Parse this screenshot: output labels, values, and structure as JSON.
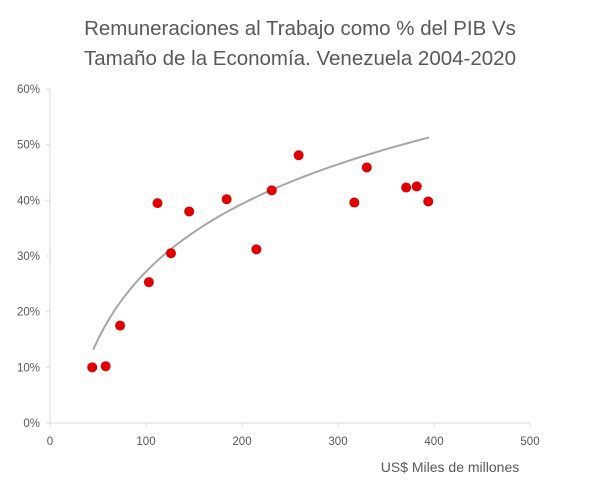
{
  "chart_data": {
    "type": "scatter",
    "title": "Remuneraciones  al Trabajo como % del PIB Vs Tamaño de la Economía. Venezuela 2004-2020",
    "title_lines": [
      "Remuneraciones  al Trabajo como % del PIB Vs",
      "Tamaño de la Economía. Venezuela 2004-2020"
    ],
    "xlabel": "US$ Miles de millones",
    "ylabel": "",
    "xlim": [
      0,
      500
    ],
    "ylim": [
      0,
      0.6
    ],
    "x_ticks": [
      0,
      100,
      200,
      300,
      400,
      500
    ],
    "y_ticks": [
      0,
      0.1,
      0.2,
      0.3,
      0.4,
      0.5,
      0.6
    ],
    "x_tick_labels": [
      "0",
      "100",
      "200",
      "300",
      "400",
      "500"
    ],
    "y_tick_labels": [
      "0%",
      "10%",
      "20%",
      "30%",
      "40%",
      "50%",
      "60%"
    ],
    "grid": false,
    "legend": "none",
    "marker_color": "#e00000",
    "trendline_color": "#a6a6a6",
    "trendline": {
      "type": "logarithmic",
      "x_range": [
        45,
        395
      ],
      "a": 0.1755,
      "b": -0.5363
    },
    "series": [
      {
        "points": [
          {
            "x": 44,
            "y": 0.1
          },
          {
            "x": 58,
            "y": 0.102
          },
          {
            "x": 73,
            "y": 0.175
          },
          {
            "x": 103,
            "y": 0.253
          },
          {
            "x": 112,
            "y": 0.395
          },
          {
            "x": 126,
            "y": 0.305
          },
          {
            "x": 145,
            "y": 0.38
          },
          {
            "x": 184,
            "y": 0.402
          },
          {
            "x": 215,
            "y": 0.312
          },
          {
            "x": 231,
            "y": 0.418
          },
          {
            "x": 259,
            "y": 0.481
          },
          {
            "x": 317,
            "y": 0.396
          },
          {
            "x": 330,
            "y": 0.459
          },
          {
            "x": 371,
            "y": 0.423
          },
          {
            "x": 382,
            "y": 0.425
          },
          {
            "x": 394,
            "y": 0.398
          }
        ]
      }
    ]
  }
}
